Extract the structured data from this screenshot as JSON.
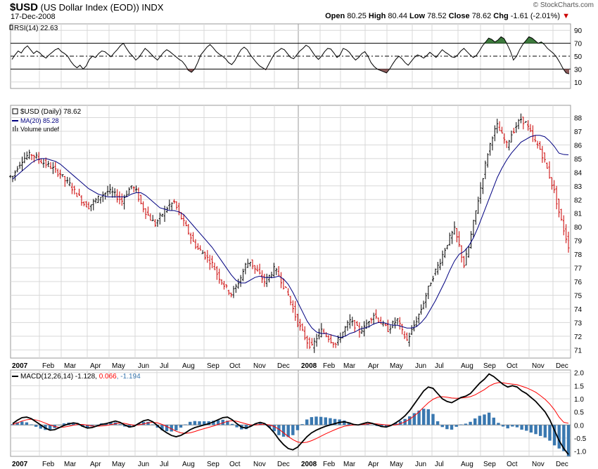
{
  "header": {
    "symbol": "$USD",
    "name": "(US Dollar Index (EOD))",
    "exchange": "INDX",
    "date": "17-Dec-2008",
    "copyright": "© StockCharts.com",
    "open_label": "Open",
    "open": "80.25",
    "high_label": "High",
    "high": "80.44",
    "low_label": "Low",
    "low": "78.52",
    "close_label": "Close",
    "close": "78.62",
    "chg_label": "Chg",
    "chg": "-1.61 (-2.01%)",
    "chg_arrow": "▼"
  },
  "colors": {
    "up": "#000000",
    "down": "#cc0000",
    "ma": "#000080",
    "volume": "#000000",
    "macd": "#000000",
    "signal": "#ff0000",
    "hist": "#3a78b0",
    "rsi_over": "#3c7a3c",
    "rsi_under": "#8b5a5a",
    "grid": "#d8d8d8"
  },
  "chart_data": [
    {
      "type": "line",
      "panel": "rsi",
      "label": "RSI(14)",
      "value": "22.63",
      "y_ticks": [
        "90",
        "70",
        "50",
        "30",
        "10"
      ],
      "ylim": [
        0,
        100
      ],
      "levels": [
        70,
        50,
        30
      ],
      "series": [
        {
          "name": "RSI(14)",
          "values": [
            45,
            52,
            58,
            55,
            62,
            66,
            60,
            54,
            58,
            55,
            50,
            47,
            52,
            56,
            60,
            62,
            57,
            54,
            50,
            42,
            36,
            32,
            36,
            30,
            35,
            45,
            50,
            48,
            54,
            58,
            57,
            53,
            49,
            55,
            60,
            66,
            70,
            62,
            55,
            50,
            44,
            48,
            55,
            62,
            58,
            53,
            48,
            44,
            50,
            56,
            60,
            57,
            53,
            49,
            45,
            42,
            36,
            28,
            25,
            30,
            40,
            52,
            58,
            64,
            68,
            63,
            57,
            53,
            50,
            46,
            40,
            37,
            43,
            52,
            60,
            64,
            60,
            52,
            46,
            40,
            35,
            32,
            29,
            38,
            47,
            55,
            58,
            62,
            60,
            54,
            48,
            46,
            52,
            58,
            62,
            67,
            64,
            57,
            50,
            45,
            50,
            57,
            62,
            61,
            55,
            48,
            52,
            62,
            60,
            56,
            49,
            44,
            48,
            54,
            57,
            50,
            40,
            34,
            30,
            28,
            26,
            24,
            30,
            38,
            45,
            50,
            46,
            40,
            36,
            42,
            48,
            52,
            50,
            47,
            51,
            56,
            52,
            48,
            54,
            60,
            56,
            53,
            49,
            48,
            52,
            58,
            62,
            57,
            52,
            48,
            51,
            58,
            66,
            72,
            78,
            76,
            72,
            75,
            80,
            77,
            68,
            58,
            44,
            50,
            60,
            68,
            74,
            80,
            78,
            74,
            70,
            72,
            68,
            62,
            58,
            54,
            48,
            40,
            31,
            24,
            22.63
          ]
        }
      ]
    },
    {
      "type": "ohlc",
      "panel": "price",
      "label": "$USD (Daily)",
      "value": "78.62",
      "ma_label": "MA(20)",
      "ma_value": "85.28",
      "volume_label": "Volume undef",
      "y_ticks": [
        "88",
        "87",
        "86",
        "85",
        "84",
        "83",
        "82",
        "81",
        "80",
        "79",
        "78",
        "77",
        "76",
        "75",
        "74",
        "73",
        "72",
        "71"
      ],
      "ylim": [
        70.4,
        88.9
      ],
      "x_labels": [
        "2007",
        "Feb",
        "Mar",
        "Apr",
        "May",
        "Jun",
        "Jul",
        "Aug",
        "Sep",
        "Oct",
        "Nov",
        "Dec",
        "2008",
        "Feb",
        "Mar",
        "Apr",
        "May",
        "Jun",
        "Jul",
        "Aug",
        "Sep",
        "Oct",
        "Nov",
        "Dec"
      ],
      "closes": [
        83.7,
        84.4,
        84.9,
        85.2,
        85.3,
        85.1,
        84.8,
        84.6,
        84.4,
        84.1,
        83.9,
        83.4,
        83.1,
        82.6,
        82.2,
        81.7,
        81.5,
        81.8,
        82.1,
        82.4,
        82.6,
        82.5,
        82.2,
        81.9,
        82.5,
        83.0,
        82.6,
        81.7,
        81.1,
        80.6,
        80.2,
        80.7,
        81.2,
        81.6,
        81.8,
        81.0,
        80.3,
        79.6,
        78.9,
        78.4,
        78.1,
        77.7,
        77.3,
        76.6,
        76.0,
        75.5,
        75.1,
        75.6,
        76.3,
        77.2,
        77.5,
        76.9,
        76.5,
        76.0,
        76.4,
        76.9,
        76.5,
        75.7,
        75.0,
        74.0,
        73.0,
        72.3,
        71.6,
        71.2,
        71.9,
        72.4,
        72.1,
        71.7,
        71.4,
        72.0,
        72.6,
        73.1,
        72.8,
        72.4,
        72.6,
        73.2,
        73.6,
        73.2,
        72.8,
        72.5,
        72.9,
        73.2,
        72.3,
        71.7,
        72.4,
        73.2,
        74.0,
        75.0,
        76.0,
        76.8,
        77.5,
        78.4,
        79.2,
        79.8,
        78.6,
        77.2,
        78.5,
        80.3,
        82.0,
        83.7,
        85.4,
        86.7,
        87.4,
        86.7,
        86.0,
        86.8,
        87.4,
        87.9,
        87.6,
        86.9,
        86.2,
        85.7,
        84.8,
        83.7,
        82.6,
        81.1,
        79.8,
        78.62
      ],
      "ma20": [
        83.5,
        83.8,
        84.1,
        84.4,
        84.7,
        84.9,
        85.0,
        85.0,
        84.9,
        84.8,
        84.6,
        84.3,
        84.0,
        83.7,
        83.4,
        83.1,
        82.8,
        82.6,
        82.4,
        82.3,
        82.2,
        82.2,
        82.2,
        82.2,
        82.2,
        82.4,
        82.5,
        82.5,
        82.3,
        82.0,
        81.7,
        81.4,
        81.3,
        81.2,
        81.2,
        81.1,
        80.9,
        80.5,
        80.1,
        79.7,
        79.3,
        78.9,
        78.5,
        78.0,
        77.5,
        77.0,
        76.5,
        76.1,
        75.9,
        75.9,
        76.1,
        76.3,
        76.4,
        76.3,
        76.3,
        76.3,
        76.4,
        76.2,
        75.8,
        75.2,
        74.5,
        73.8,
        73.1,
        72.6,
        72.3,
        72.2,
        72.2,
        72.1,
        72.0,
        71.9,
        72.0,
        72.2,
        72.3,
        72.5,
        72.6,
        72.7,
        72.9,
        73.0,
        73.0,
        72.9,
        72.8,
        72.8,
        72.7,
        72.6,
        72.6,
        72.7,
        73.0,
        73.4,
        74.0,
        74.6,
        75.3,
        76.0,
        76.8,
        77.5,
        78.0,
        78.2,
        78.6,
        79.2,
        80.0,
        80.9,
        81.8,
        82.7,
        83.6,
        84.3,
        84.9,
        85.4,
        85.8,
        86.2,
        86.4,
        86.6,
        86.7,
        86.7,
        86.6,
        86.3,
        85.9,
        85.4,
        85.3,
        85.28
      ]
    },
    {
      "type": "line",
      "panel": "macd",
      "label": "MACD(12,26,14)",
      "values_text": [
        "-1.128",
        "0.066",
        "-1.194"
      ],
      "y_ticks": [
        "2.0",
        "1.5",
        "1.0",
        "0.5",
        "0.0",
        "-0.5",
        "-1.0"
      ],
      "ylim": [
        -1.2,
        2.1
      ],
      "series": [
        {
          "name": "MACD",
          "values": [
            0.05,
            0.18,
            0.28,
            0.3,
            0.24,
            0.12,
            0.0,
            -0.12,
            -0.2,
            -0.18,
            -0.1,
            -0.02,
            0.04,
            0.08,
            0.05,
            -0.05,
            -0.12,
            -0.1,
            -0.04,
            0.02,
            0.05,
            0.1,
            0.15,
            0.1,
            0.0,
            -0.08,
            -0.05,
            0.06,
            0.16,
            0.2,
            0.12,
            -0.02,
            -0.18,
            -0.3,
            -0.4,
            -0.45,
            -0.4,
            -0.3,
            -0.18,
            -0.1,
            -0.05,
            0.0,
            0.05,
            0.12,
            0.2,
            0.28,
            0.3,
            0.2,
            0.05,
            -0.08,
            -0.12,
            -0.05,
            0.05,
            0.1,
            0.05,
            -0.1,
            -0.3,
            -0.55,
            -0.75,
            -0.9,
            -0.95,
            -0.85,
            -0.65,
            -0.45,
            -0.3,
            -0.2,
            -0.12,
            -0.05,
            0.0,
            0.05,
            0.1,
            0.12,
            0.08,
            0.02,
            0.0,
            0.05,
            0.1,
            0.06,
            0.0,
            -0.06,
            -0.08,
            -0.02,
            0.08,
            0.2,
            0.35,
            0.55,
            0.8,
            1.05,
            1.3,
            1.45,
            1.4,
            1.2,
            1.0,
            0.9,
            0.85,
            0.95,
            1.05,
            1.1,
            1.2,
            1.4,
            1.6,
            1.75,
            1.95,
            1.85,
            1.7,
            1.55,
            1.45,
            1.5,
            1.45,
            1.3,
            1.2,
            1.05,
            0.9,
            0.7,
            0.5,
            0.2,
            -0.2,
            -0.6,
            -0.9,
            -1.128
          ]
        },
        {
          "name": "Signal",
          "values": [
            0.02,
            0.08,
            0.15,
            0.2,
            0.22,
            0.19,
            0.14,
            0.07,
            0.0,
            -0.06,
            -0.09,
            -0.08,
            -0.05,
            -0.01,
            0.02,
            0.02,
            -0.01,
            -0.04,
            -0.05,
            -0.04,
            -0.02,
            0.01,
            0.05,
            0.07,
            0.06,
            0.02,
            -0.01,
            0.0,
            0.04,
            0.08,
            0.1,
            0.08,
            0.02,
            -0.06,
            -0.15,
            -0.24,
            -0.3,
            -0.32,
            -0.3,
            -0.25,
            -0.19,
            -0.14,
            -0.09,
            -0.04,
            0.02,
            0.08,
            0.14,
            0.16,
            0.14,
            0.09,
            0.04,
            0.0,
            0.0,
            0.02,
            0.03,
            0.0,
            -0.06,
            -0.16,
            -0.3,
            -0.44,
            -0.56,
            -0.65,
            -0.68,
            -0.66,
            -0.6,
            -0.52,
            -0.43,
            -0.34,
            -0.26,
            -0.18,
            -0.11,
            -0.05,
            -0.02,
            0.0,
            0.0,
            0.02,
            0.04,
            0.05,
            0.04,
            0.02,
            0.0,
            -0.01,
            0.0,
            0.05,
            0.12,
            0.22,
            0.35,
            0.5,
            0.68,
            0.85,
            0.98,
            1.06,
            1.08,
            1.06,
            1.03,
            1.02,
            1.03,
            1.05,
            1.08,
            1.15,
            1.25,
            1.35,
            1.48,
            1.57,
            1.62,
            1.61,
            1.58,
            1.56,
            1.54,
            1.48,
            1.42,
            1.34,
            1.25,
            1.12,
            0.98,
            0.8,
            0.58,
            0.3,
            0.1,
            0.066
          ]
        }
      ]
    }
  ]
}
